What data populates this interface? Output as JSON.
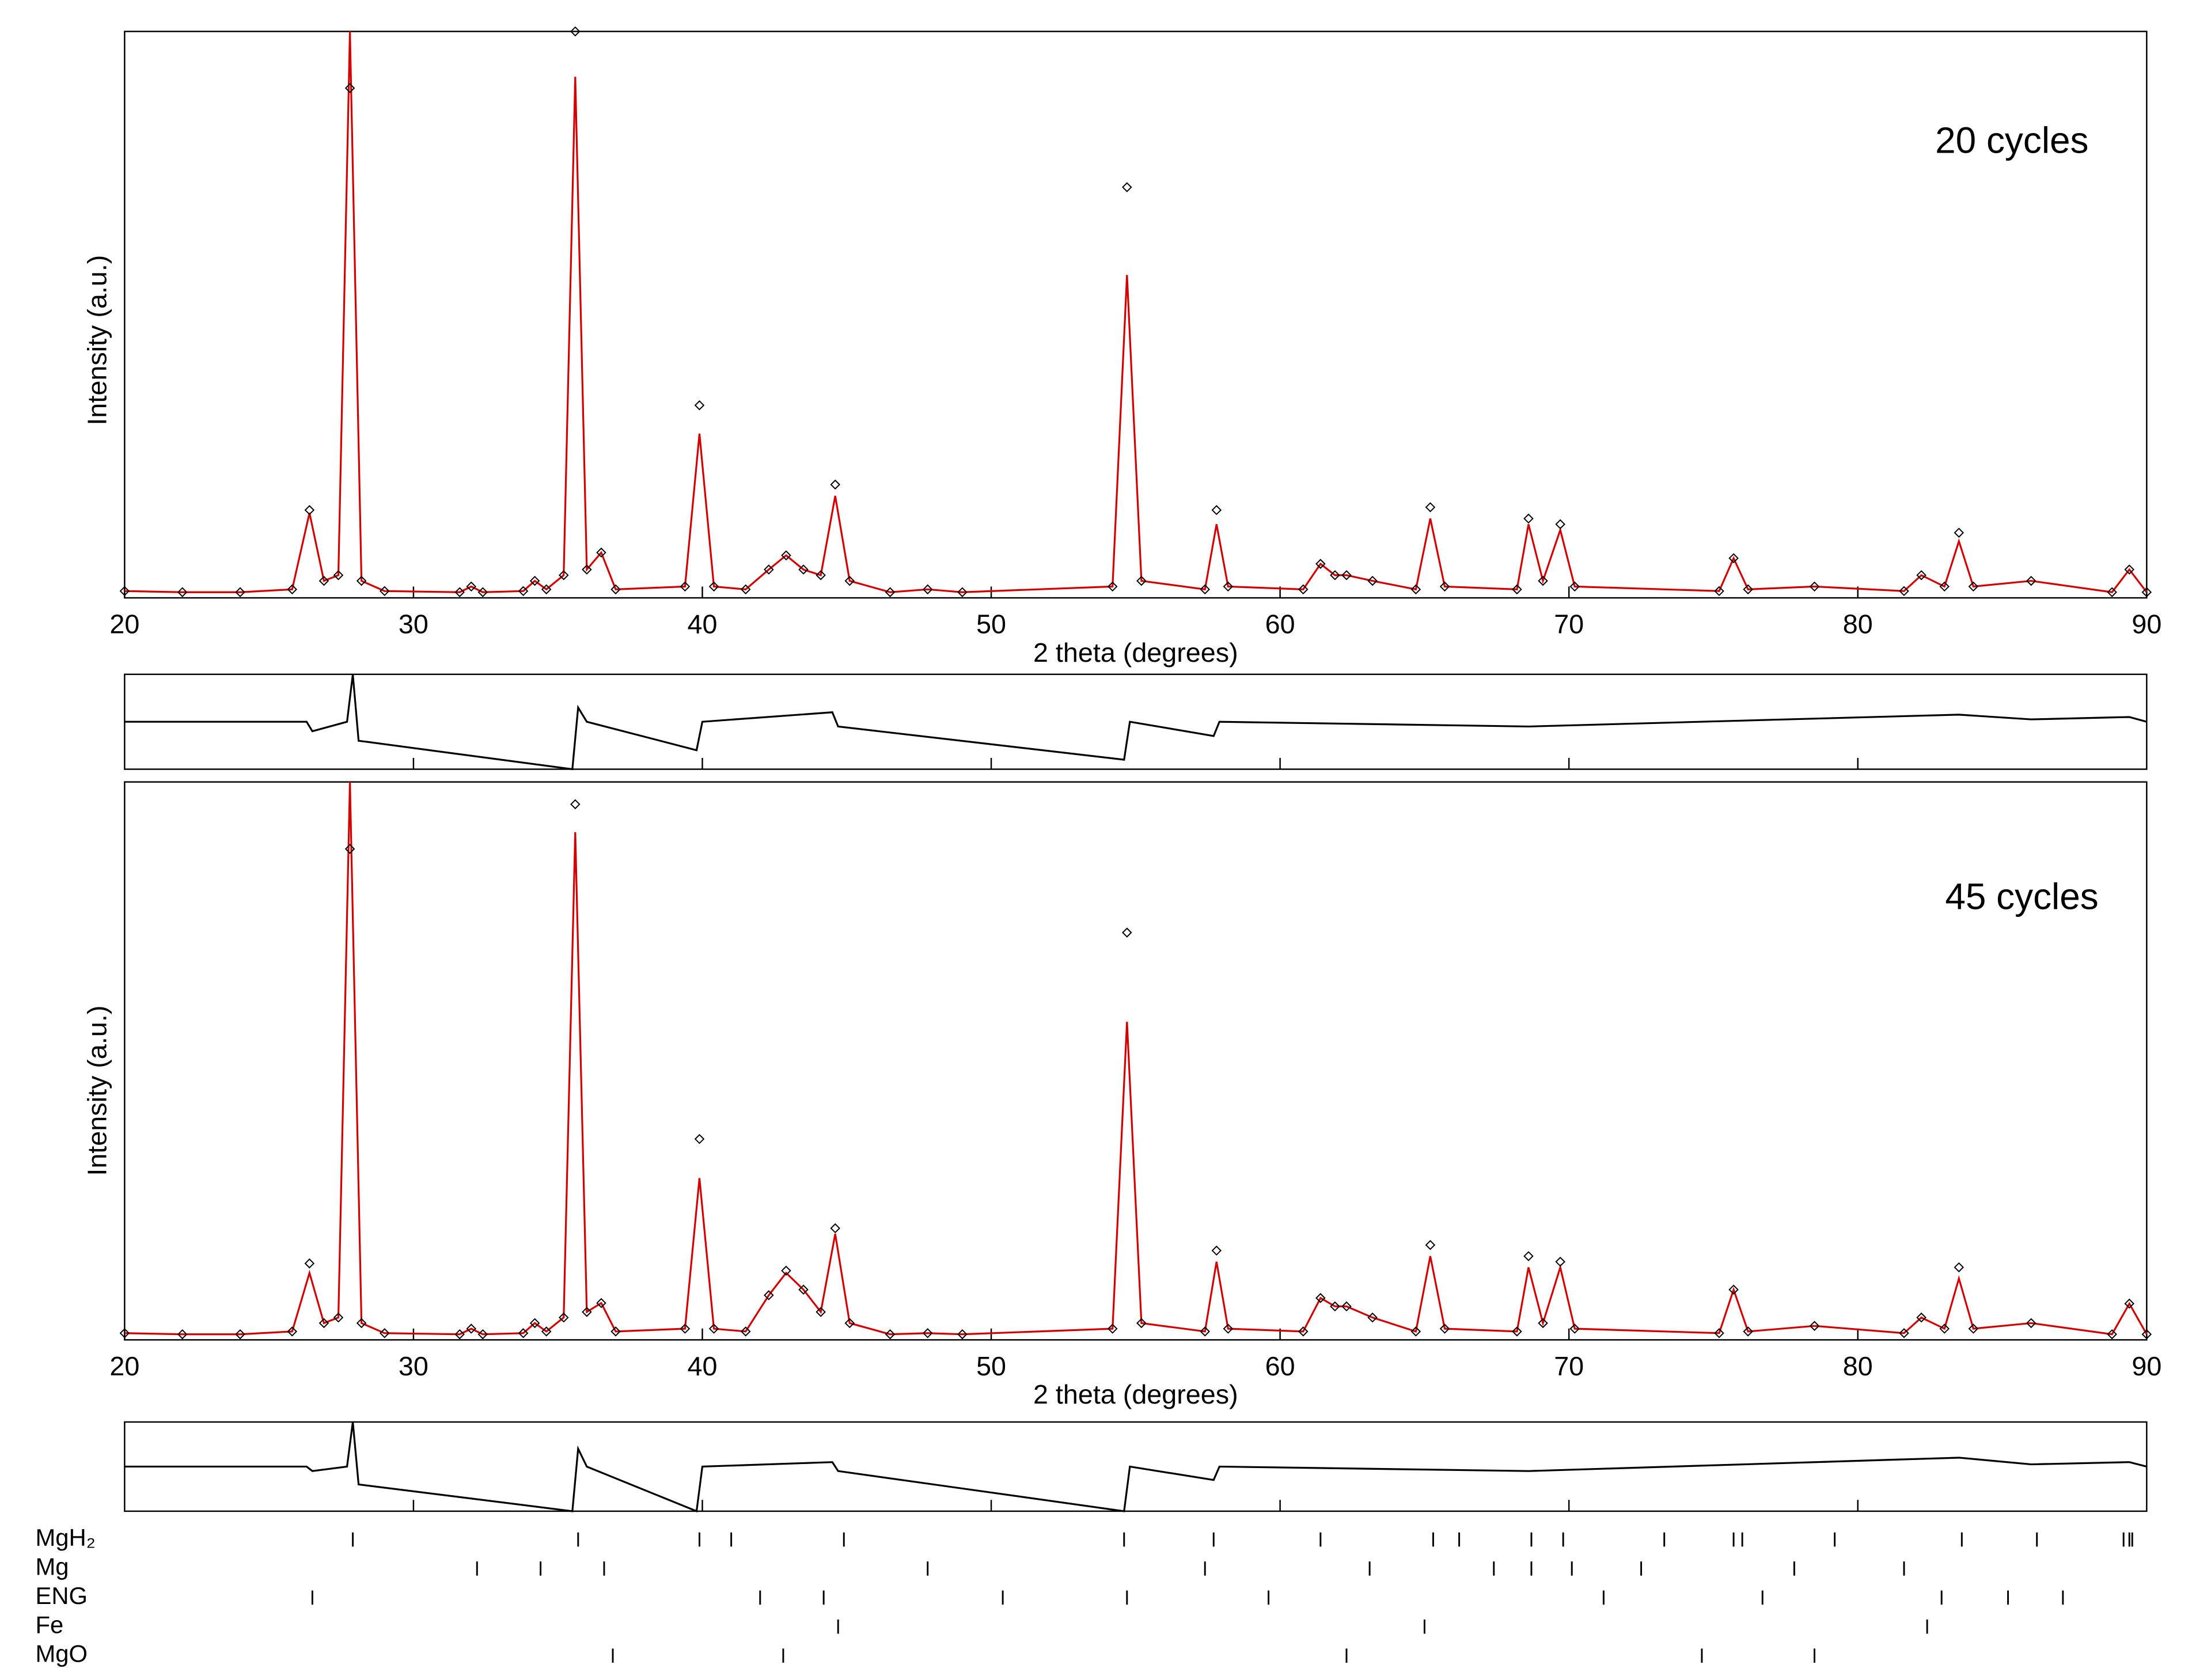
{
  "chart_data": [
    {
      "type": "line",
      "annotation": "20 cycles",
      "xlabel": "2 theta (degrees)",
      "ylabel": "Intensity (a.u.)",
      "xlim": [
        20,
        90
      ],
      "xticks": [
        20,
        30,
        40,
        50,
        60,
        70,
        80,
        90
      ],
      "ylim": [
        0,
        100
      ],
      "x": [
        20,
        22,
        24,
        25.8,
        26.4,
        26.9,
        27.4,
        27.8,
        28.2,
        29,
        31.6,
        32,
        32.4,
        33.8,
        34.2,
        34.6,
        35.2,
        35.6,
        36.0,
        36.5,
        37,
        39.4,
        39.9,
        40.4,
        41.5,
        42.3,
        42.9,
        43.5,
        44.1,
        44.6,
        45.1,
        46.5,
        47.8,
        49,
        54.2,
        54.7,
        55.2,
        57.4,
        57.8,
        58.2,
        60.8,
        61.4,
        61.9,
        62.3,
        63.2,
        64.7,
        65.2,
        65.7,
        68.2,
        68.6,
        69.1,
        69.7,
        70.2,
        75.2,
        75.7,
        76.2,
        78.5,
        81.6,
        82.2,
        83.0,
        83.5,
        84.0,
        86.0,
        88.8,
        89.4,
        90
      ],
      "series": [
        {
          "color": "#000000",
          "marker": "diamond",
          "values": [
            1.2,
            1,
            1,
            1.5,
            15.5,
            3,
            4,
            90,
            3,
            1.2,
            1,
            2,
            1,
            1.2,
            3,
            1.5,
            4,
            100,
            5,
            8,
            1.5,
            2,
            34,
            2,
            1.5,
            5,
            7.5,
            5,
            4,
            20,
            3,
            1,
            1.5,
            1,
            2,
            72.5,
            3,
            1.5,
            15.5,
            2,
            1.5,
            6,
            4,
            4,
            3,
            1.5,
            16,
            2,
            1.5,
            14,
            3,
            13,
            2,
            1.2,
            7,
            1.5,
            2,
            1.2,
            4,
            2,
            11.5,
            2,
            3,
            1,
            5,
            1
          ]
        },
        {
          "color": "#d40000",
          "marker": "none",
          "values": [
            1.2,
            1,
            1,
            1.5,
            15,
            3,
            4,
            100,
            3,
            1.2,
            1,
            2,
            1,
            1.2,
            3,
            1.5,
            4,
            92,
            5,
            8,
            1.5,
            2,
            29,
            2,
            1.5,
            5,
            7.5,
            5,
            4,
            18,
            3,
            1,
            1.5,
            1,
            2,
            57,
            3,
            1.5,
            13,
            2,
            1.5,
            6,
            4,
            4,
            3,
            1.5,
            14,
            2,
            1.5,
            13,
            3,
            12,
            2,
            1.2,
            7,
            1.5,
            2,
            1.2,
            4,
            2,
            10,
            2,
            3,
            1,
            5,
            1
          ]
        }
      ]
    },
    {
      "type": "line",
      "xlim": [
        20,
        90
      ],
      "xticks": [
        30,
        40,
        50,
        60,
        70,
        80
      ],
      "ylim": [
        -10,
        10
      ],
      "x": [
        20,
        26.3,
        26.5,
        27.7,
        27.9,
        28.1,
        35.5,
        35.7,
        36,
        39.8,
        40,
        44.5,
        44.7,
        54.6,
        54.8,
        57.7,
        57.9,
        68.6,
        83.5,
        86,
        89.4,
        90
      ],
      "series": [
        {
          "color": "#000000",
          "marker": "none",
          "values": [
            0,
            0,
            -2,
            0,
            10,
            -4,
            -10,
            3,
            0,
            -6,
            0,
            2,
            -1,
            -8,
            0,
            -3,
            0,
            -1,
            1.5,
            0.5,
            1,
            0
          ]
        }
      ]
    },
    {
      "type": "line",
      "annotation": "45 cycles",
      "xlabel": "2 theta (degrees)",
      "ylabel": "Intensity (a.u.)",
      "xlim": [
        20,
        90
      ],
      "xticks": [
        20,
        30,
        40,
        50,
        60,
        70,
        80,
        90
      ],
      "ylim": [
        0,
        100
      ],
      "x": [
        20,
        22,
        24,
        25.8,
        26.4,
        26.9,
        27.4,
        27.8,
        28.2,
        29,
        31.6,
        32,
        32.4,
        33.8,
        34.2,
        34.6,
        35.2,
        35.6,
        36.0,
        36.5,
        37,
        39.4,
        39.9,
        40.4,
        41.5,
        42.3,
        42.9,
        43.5,
        44.1,
        44.6,
        45.1,
        46.5,
        47.8,
        49,
        54.2,
        54.7,
        55.2,
        57.4,
        57.8,
        58.2,
        60.8,
        61.4,
        61.9,
        62.3,
        63.2,
        64.7,
        65.2,
        65.7,
        68.2,
        68.6,
        69.1,
        69.7,
        70.2,
        75.2,
        75.7,
        76.2,
        78.5,
        81.6,
        82.2,
        83.0,
        83.5,
        84.0,
        86.0,
        88.8,
        89.4,
        90
      ],
      "series": [
        {
          "color": "#000000",
          "marker": "diamond",
          "values": [
            1.2,
            1,
            1,
            1.5,
            13.7,
            3,
            4,
            88,
            3,
            1.2,
            1,
            2,
            1,
            1.2,
            3,
            1.5,
            4,
            96,
            5,
            6.6,
            1.5,
            2,
            36,
            2,
            1.5,
            8,
            12.4,
            9,
            5,
            20,
            3,
            1,
            1.2,
            1,
            2,
            73,
            3,
            1.5,
            16,
            2,
            1.5,
            7.5,
            6,
            6,
            4,
            1.5,
            17,
            2,
            1.5,
            15,
            3,
            14,
            2,
            1.2,
            9,
            1.5,
            2.5,
            1.2,
            4,
            2,
            13,
            2,
            3,
            1,
            6.5,
            1
          ]
        },
        {
          "color": "#d40000",
          "marker": "none",
          "values": [
            1.2,
            1,
            1,
            1.5,
            12,
            3,
            4,
            100,
            3,
            1.2,
            1,
            2,
            1,
            1.2,
            3,
            1.5,
            4,
            91,
            5,
            6.6,
            1.5,
            2,
            29,
            2,
            1.5,
            8,
            12,
            9,
            5,
            19,
            3,
            1,
            1.2,
            1,
            2,
            57,
            3,
            1.5,
            14,
            2,
            1.5,
            7.5,
            6,
            6,
            4,
            1.5,
            15,
            2,
            1.5,
            13,
            3,
            13,
            2,
            1.2,
            9,
            1.5,
            2.5,
            1.2,
            4,
            2,
            11,
            2,
            3,
            1,
            6.5,
            1
          ]
        }
      ]
    },
    {
      "type": "line",
      "xlim": [
        20,
        90
      ],
      "xticks": [
        30,
        40,
        50,
        60,
        70,
        80
      ],
      "ylim": [
        -10,
        10
      ],
      "x": [
        20,
        26.3,
        26.5,
        27.7,
        27.9,
        28.1,
        35.5,
        35.7,
        36,
        39.8,
        40,
        44.5,
        44.7,
        54.6,
        54.8,
        57.7,
        57.9,
        68.6,
        83.5,
        86,
        89.4,
        90
      ],
      "series": [
        {
          "color": "#000000",
          "marker": "none",
          "values": [
            0,
            0,
            -1,
            0,
            10,
            -4,
            -10,
            4,
            0,
            -10,
            0,
            1,
            -1,
            -10,
            0,
            -3,
            0,
            -1,
            2,
            0.5,
            1,
            0
          ]
        }
      ]
    },
    {
      "type": "rug",
      "xlim": [
        20,
        90
      ],
      "series": [
        {
          "name": "MgH₂",
          "color": "#000000",
          "values": [
            27.9,
            35.7,
            39.9,
            41.0,
            44.9,
            54.6,
            57.7,
            61.4,
            65.3,
            66.2,
            68.7,
            69.8,
            73.3,
            75.7,
            76.0,
            79.2,
            83.6,
            86.2,
            89.2,
            89.4,
            89.5
          ]
        },
        {
          "name": "Mg",
          "color": "#000000",
          "values": [
            32.2,
            34.4,
            36.6,
            47.8,
            57.4,
            63.1,
            67.4,
            68.7,
            70.1,
            72.5,
            77.8,
            81.6
          ]
        },
        {
          "name": "ENG",
          "color": "#000000",
          "values": [
            26.5,
            42.0,
            44.2,
            50.4,
            54.7,
            59.6,
            71.2,
            76.7,
            82.9,
            85.2,
            87.1
          ]
        },
        {
          "name": "Fe",
          "color": "#000000",
          "values": [
            44.7,
            65.0,
            82.4
          ]
        },
        {
          "name": "MgO",
          "color": "#000000",
          "values": [
            36.9,
            42.8,
            62.3,
            74.6,
            78.5
          ]
        }
      ]
    }
  ]
}
